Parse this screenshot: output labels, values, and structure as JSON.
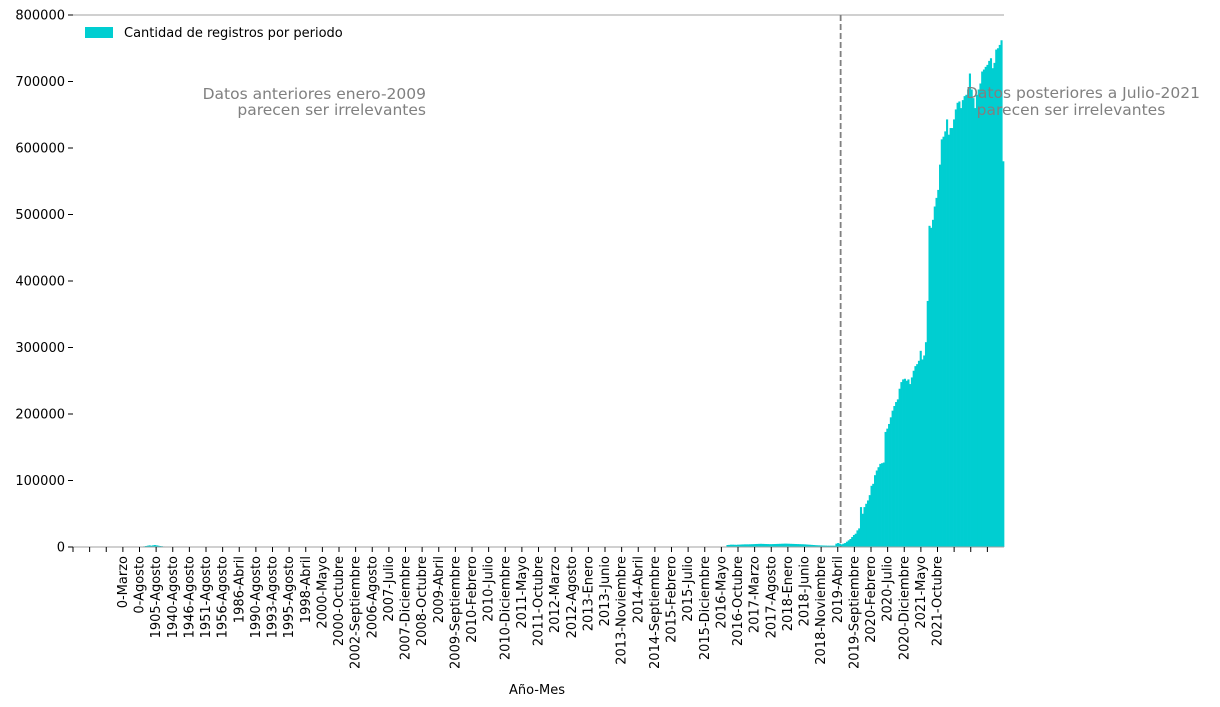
{
  "chart_data": {
    "type": "bar",
    "title": "",
    "xlabel": "Año-Mes",
    "ylabel": "",
    "ylim": [
      0,
      800000
    ],
    "yticks": [
      0,
      100000,
      200000,
      300000,
      400000,
      500000,
      600000,
      700000,
      800000
    ],
    "grid": false,
    "legend_position": "top-left",
    "colors": {
      "bar": "#00CED1",
      "annotation": "#808080",
      "axis": "#a0a0a0"
    },
    "series": [
      {
        "name": "Cantidad de registros por periodo"
      }
    ],
    "x_tick_labels": [
      "",
      "",
      "",
      "0-Marzo",
      "0-Agosto",
      "1905-Agosto",
      "1940-Agosto",
      "1946-Agosto",
      "1951-Agosto",
      "1956-Agosto",
      "1986-Abril",
      "1990-Agosto",
      "1993-Agosto",
      "1995-Agosto",
      "1998-Abril",
      "2000-Mayo",
      "2000-Octubre",
      "2002-Septiembre",
      "2006-Agosto",
      "2007-Julio",
      "2007-Diciembre",
      "2008-Octubre",
      "2009-Abril",
      "2009-Septiembre",
      "2010-Febrero",
      "2010-Julio",
      "2010-Diciembre",
      "2011-Mayo",
      "2011-Octubre",
      "2012-Marzo",
      "2012-Agosto",
      "2013-Enero",
      "2013-Junio",
      "2013-Noviembre",
      "2014-Abril",
      "2014-Septiembre",
      "2015-Febrero",
      "2015-Julio",
      "2015-Diciembre",
      "2016-Mayo",
      "2016-Octubre",
      "2017-Marzo",
      "2017-Agosto",
      "2018-Enero",
      "2018-Junio",
      "2018-Noviembre",
      "2019-Abril",
      "2019-Septiembre",
      "2020-Febrero",
      "2020-Julio",
      "2020-Diciembre",
      "2021-Mayo",
      "2021-Octubre",
      "",
      "",
      ""
    ],
    "values": [
      0,
      0,
      0,
      0,
      0,
      0,
      0,
      0,
      0,
      0,
      0,
      0,
      0,
      0,
      0,
      0,
      0,
      0,
      0,
      0,
      0,
      0,
      0,
      0,
      0,
      0,
      0,
      0,
      0,
      0,
      0,
      0,
      0,
      0,
      0,
      0,
      0,
      0,
      0,
      0,
      1000,
      1500,
      2000,
      2500,
      2000,
      2500,
      3000,
      2500,
      2000,
      1500,
      1200,
      800,
      500,
      300,
      200,
      0,
      0,
      0,
      0,
      0,
      0,
      0,
      0,
      0,
      0,
      0,
      0,
      0,
      0,
      0,
      0,
      0,
      0,
      0,
      0,
      0,
      0,
      0,
      0,
      0,
      0,
      0,
      0,
      0,
      0,
      0,
      0,
      0,
      0,
      0,
      0,
      0,
      0,
      0,
      0,
      0,
      0,
      0,
      0,
      0,
      0,
      0,
      0,
      0,
      0,
      0,
      0,
      0,
      0,
      0,
      0,
      0,
      0,
      0,
      0,
      0,
      0,
      0,
      0,
      0,
      0,
      0,
      0,
      0,
      0,
      0,
      0,
      0,
      0,
      0,
      0,
      0,
      0,
      0,
      0,
      0,
      0,
      0,
      0,
      0,
      0,
      0,
      0,
      0,
      0,
      0,
      0,
      0,
      0,
      0,
      0,
      0,
      0,
      0,
      0,
      0,
      0,
      0,
      0,
      0,
      0,
      0,
      0,
      0,
      0,
      0,
      0,
      0,
      0,
      0,
      0,
      0,
      0,
      0,
      0,
      0,
      0,
      0,
      0,
      0,
      0,
      0,
      0,
      0,
      0,
      0,
      0,
      0,
      0,
      0,
      0,
      0,
      0,
      0,
      0,
      0,
      0,
      0,
      0,
      0,
      0,
      0,
      0,
      0,
      0,
      0,
      0,
      0,
      0,
      0,
      0,
      0,
      0,
      0,
      0,
      0,
      0,
      0,
      0,
      0,
      0,
      0,
      0,
      0,
      0,
      0,
      0,
      0,
      0,
      0,
      0,
      0,
      0,
      0,
      0,
      0,
      0,
      0,
      0,
      0,
      0,
      0,
      0,
      0,
      0,
      0,
      0,
      0,
      0,
      0,
      0,
      0,
      0,
      0,
      0,
      0,
      0,
      0,
      0,
      0,
      0,
      0,
      0,
      0,
      0,
      0,
      0,
      0,
      0,
      0,
      0,
      0,
      0,
      0,
      0,
      0,
      0,
      0,
      0,
      0,
      0,
      0,
      0,
      0,
      0,
      0,
      0,
      0,
      0,
      0,
      0,
      0,
      0,
      0,
      0,
      0,
      0,
      0,
      0,
      0,
      0,
      0,
      0,
      0,
      0,
      0,
      0,
      0,
      0,
      0,
      0,
      0,
      0,
      0,
      0,
      0,
      0,
      0,
      0,
      0,
      0,
      0,
      0,
      0,
      0,
      0,
      0,
      0,
      0,
      0,
      0,
      0,
      0,
      0,
      0,
      0,
      0,
      0,
      0,
      0,
      0,
      0,
      0,
      0,
      0,
      0,
      0,
      0,
      0,
      0,
      0,
      0,
      0,
      0,
      0,
      0,
      0,
      0,
      0,
      0,
      0,
      0,
      0,
      0,
      0,
      0,
      0,
      0,
      0,
      0,
      0,
      0,
      3000,
      3200,
      3500,
      3500,
      3400,
      3300,
      3500,
      3600,
      3800,
      3900,
      4000,
      4000,
      4000,
      4100,
      4200,
      4300,
      4500,
      4600,
      4700,
      4800,
      4700,
      4600,
      4500,
      4400,
      4300,
      4300,
      4400,
      4500,
      4600,
      4700,
      4800,
      4900,
      5000,
      5100,
      5000,
      4900,
      4800,
      4700,
      4600,
      4500,
      4400,
      4300,
      4200,
      4100,
      4000,
      3800,
      3600,
      3400,
      3200,
      3000,
      2800,
      2600,
      2500,
      2400,
      2300,
      2200,
      2100,
      2000,
      2000,
      2000,
      2000,
      2000,
      5000,
      6000,
      5000,
      4000,
      5000,
      6000,
      8000,
      10000,
      12000,
      15000,
      18000,
      20000,
      25000,
      28000,
      60000,
      50000,
      60000,
      65000,
      70000,
      78000,
      92000,
      95000,
      108000,
      115000,
      120000,
      125000,
      126000,
      127000,
      173000,
      178000,
      185000,
      195000,
      205000,
      212000,
      218000,
      222000,
      238000,
      248000,
      252000,
      253000,
      250000,
      252000,
      245000,
      255000,
      265000,
      272000,
      275000,
      280000,
      295000,
      282000,
      288000,
      308000,
      370000,
      483000,
      480000,
      492000,
      512000,
      525000,
      537000,
      575000,
      613000,
      617000,
      625000,
      643000,
      620000,
      630000,
      630000,
      643000,
      658000,
      668000,
      670000,
      660000,
      672000,
      678000,
      680000,
      688000,
      712000,
      688000,
      675000,
      660000,
      680000,
      688000,
      697000,
      715000,
      718000,
      722000,
      725000,
      731000,
      735000,
      720000,
      728000,
      748000,
      750000,
      755000,
      762000,
      580000
    ],
    "annotations": [
      {
        "lines": [
          "Datos anteriores enero-2009",
          "parecen ser irrelevantes"
        ],
        "align": "right",
        "anchor": "cutoff-left"
      },
      {
        "lines": [
          "Datos posteriores a Julio-2021",
          "parecen ser irrelevantes"
        ],
        "align": "center",
        "anchor": "cutoff-right"
      }
    ],
    "vlines_at_bar_index": [
      437,
      942
    ]
  }
}
